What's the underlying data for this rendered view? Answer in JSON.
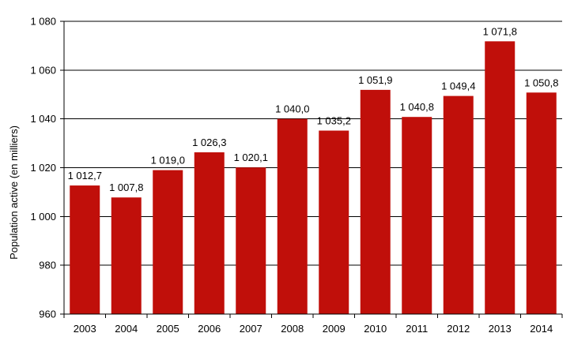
{
  "chart_data": {
    "type": "bar",
    "title": "",
    "xlabel": "",
    "ylabel": "Population active (en milliers)",
    "ylim": [
      960,
      1080
    ],
    "yticks": [
      960,
      980,
      1000,
      1020,
      1040,
      1060,
      1080
    ],
    "ytick_labels": [
      "960",
      "980",
      "1 000",
      "1 020",
      "1 040",
      "1 060",
      "1 080"
    ],
    "grid": true,
    "legend": "none",
    "bar_color": "#c00f0a",
    "categories": [
      "2003",
      "2004",
      "2005",
      "2006",
      "2007",
      "2008",
      "2009",
      "2010",
      "2011",
      "2012",
      "2013",
      "2014"
    ],
    "values": [
      1012.7,
      1007.8,
      1019.0,
      1026.3,
      1020.1,
      1040.0,
      1035.2,
      1051.9,
      1040.8,
      1049.4,
      1071.8,
      1050.8
    ],
    "data_labels": [
      "1 012,7",
      "1 007,8",
      "1 019,0",
      "1 026,3",
      "1 020,1",
      "1 040,0",
      "1 035,2",
      "1 051,9",
      "1 040,8",
      "1 049,4",
      "1 071,8",
      "1 050,8"
    ]
  }
}
